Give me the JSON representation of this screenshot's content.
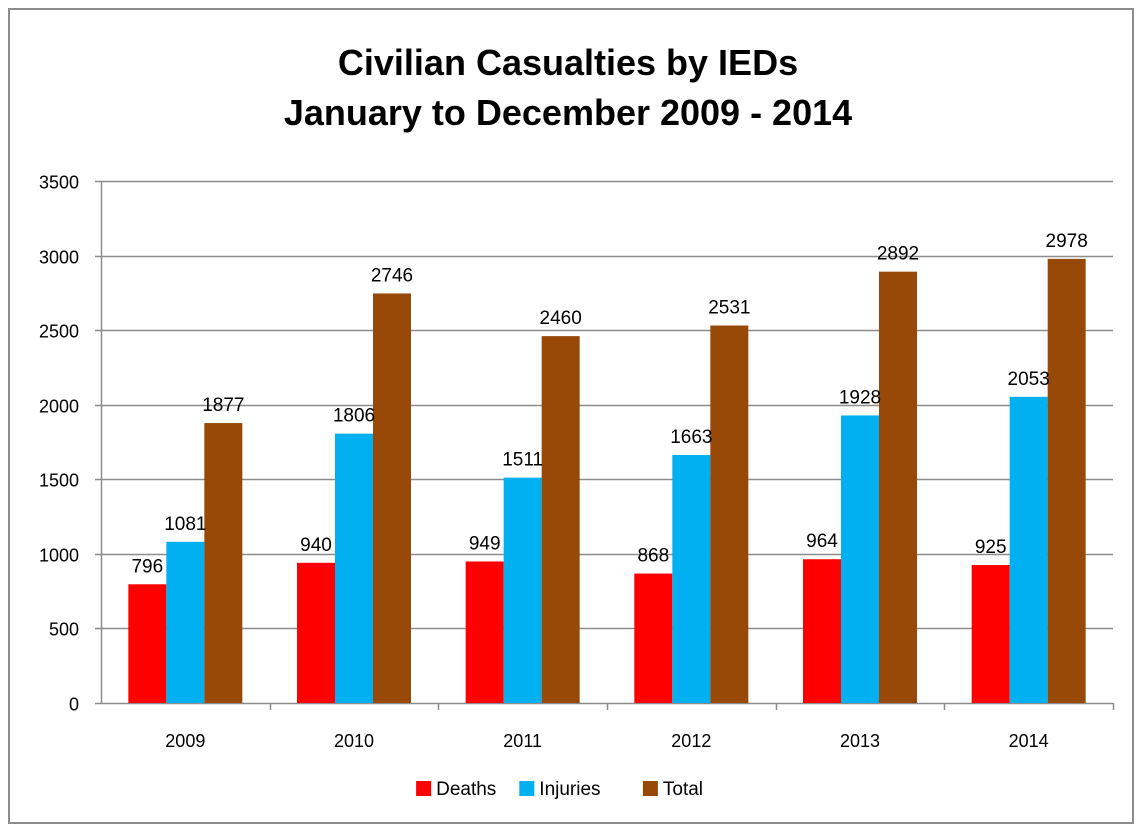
{
  "chart_data": {
    "type": "bar",
    "title_line1": "Civilian Casualties by IEDs",
    "title_line2": "January to December 2009 - 2014",
    "categories": [
      "2009",
      "2010",
      "2011",
      "2012",
      "2013",
      "2014"
    ],
    "series": [
      {
        "name": "Deaths",
        "values": [
          796,
          940,
          949,
          868,
          964,
          925
        ],
        "color": "#ff0000"
      },
      {
        "name": "Injuries",
        "values": [
          1081,
          1806,
          1511,
          1663,
          1928,
          2053
        ],
        "color": "#00b0f0"
      },
      {
        "name": "Total",
        "values": [
          1877,
          2746,
          2460,
          2531,
          2892,
          2978
        ],
        "color": "#984807"
      }
    ],
    "ylim": [
      0,
      3500
    ],
    "yticks": [
      0,
      500,
      1000,
      1500,
      2000,
      2500,
      3000,
      3500
    ],
    "grid": true,
    "legend_position": "bottom",
    "xlabel": "",
    "ylabel": ""
  }
}
